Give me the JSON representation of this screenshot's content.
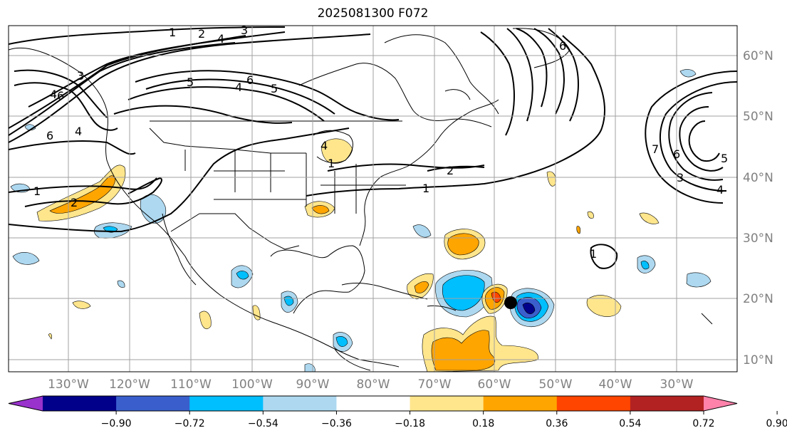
{
  "title": "2025081300 F072",
  "lon_labels": [
    "130°W",
    "120°W",
    "110°W",
    "100°W",
    "90°W",
    "80°W",
    "70°W",
    "60°W",
    "50°W",
    "40°W",
    "30°W"
  ],
  "lat_labels": [
    "60°N",
    "50°N",
    "40°N",
    "30°N",
    "20°N",
    "10°N"
  ],
  "contour_labels": [
    "1",
    "2",
    "4",
    "3",
    "3",
    "4",
    "6",
    "5",
    "4",
    "6",
    "5",
    "6",
    "4",
    "2",
    "1",
    "1",
    "2",
    "1",
    "1",
    "4",
    "6",
    "7",
    "5",
    "3",
    "4",
    "6"
  ],
  "colorbar": {
    "ticks": [
      "−0.90",
      "−0.72",
      "−0.54",
      "−0.36",
      "−0.18",
      "0.18",
      "0.36",
      "0.54",
      "0.72",
      "0.90"
    ],
    "colors": [
      "#9932cc",
      "#00008b",
      "#3a5fcd",
      "#00bfff",
      "#add8f0",
      "#ffffff",
      "#ffe68c",
      "#ffa500",
      "#ff4500",
      "#b22222",
      "#ff82ab"
    ]
  },
  "colors": {
    "grid": "#a0a0a0",
    "contour": "#000000",
    "marker": "#000000"
  }
}
